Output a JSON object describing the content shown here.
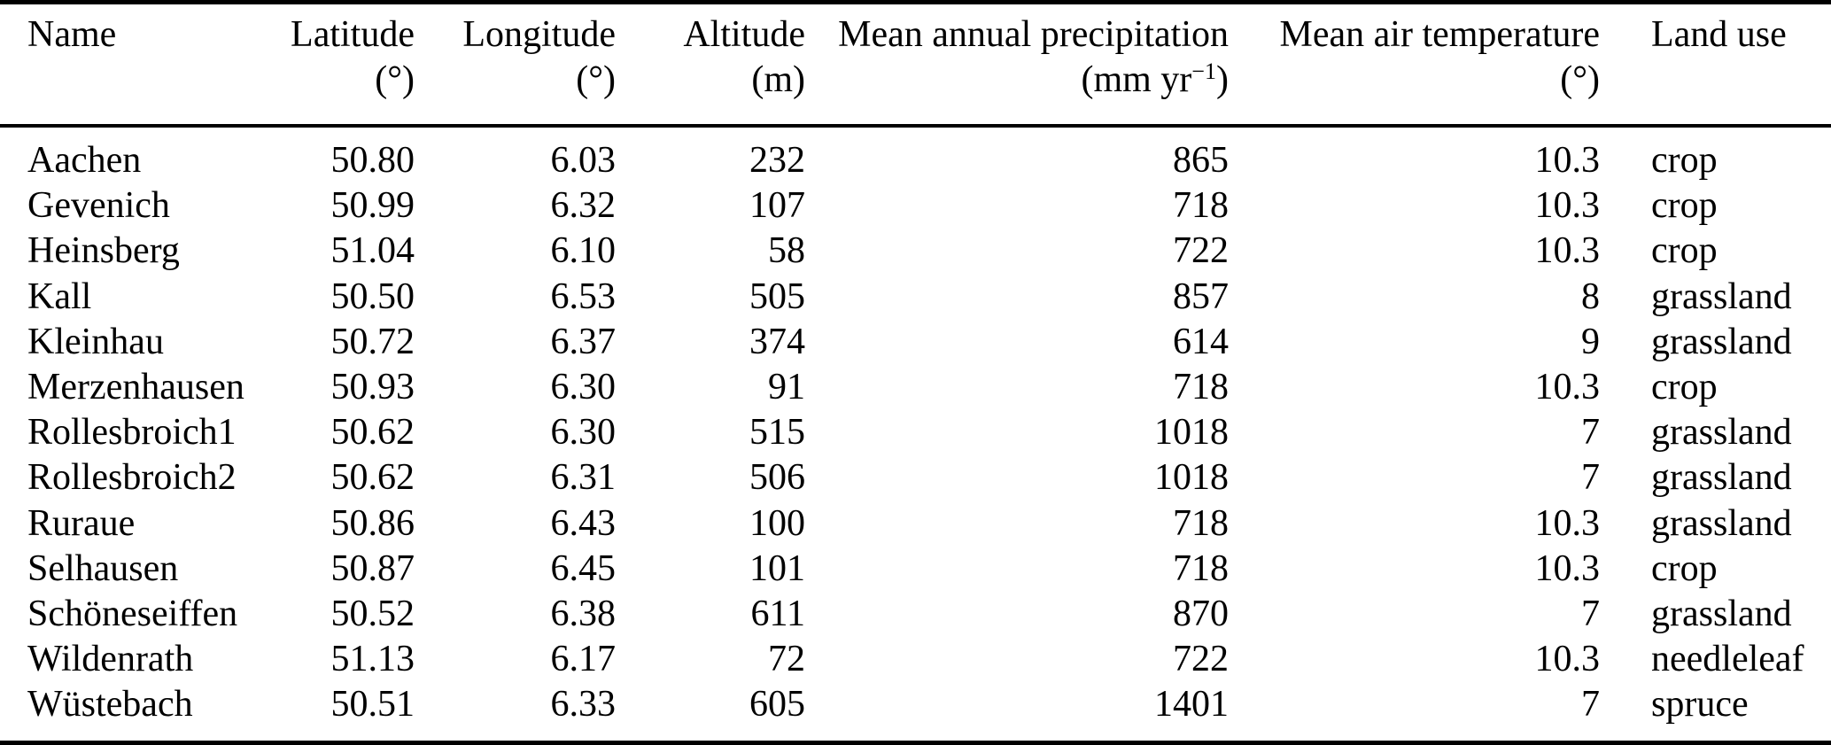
{
  "page": {
    "background_color": "#ffffff",
    "text_color": "#000000",
    "rule_color": "#000000"
  },
  "table": {
    "columns": [
      {
        "id": "name",
        "label": "Name",
        "unit": ""
      },
      {
        "id": "latitude",
        "label": "Latitude",
        "unit": "(°)"
      },
      {
        "id": "longitude",
        "label": "Longitude",
        "unit": "(°)"
      },
      {
        "id": "altitude",
        "label": "Altitude",
        "unit": "(m)"
      },
      {
        "id": "precipitation",
        "label": "Mean annual precipitation",
        "unit_pre": "(mm yr",
        "unit_sup": "−1",
        "unit_post": ")"
      },
      {
        "id": "temperature",
        "label": "Mean air temperature",
        "unit": "(°)"
      },
      {
        "id": "landuse",
        "label": "Land use",
        "unit": ""
      }
    ],
    "rows": [
      [
        "Aachen",
        "50.80",
        "6.03",
        "232",
        "865",
        "10.3",
        "crop"
      ],
      [
        "Gevenich",
        "50.99",
        "6.32",
        "107",
        "718",
        "10.3",
        "crop"
      ],
      [
        "Heinsberg",
        "51.04",
        "6.10",
        "58",
        "722",
        "10.3",
        "crop"
      ],
      [
        "Kall",
        "50.50",
        "6.53",
        "505",
        "857",
        "8",
        "grassland"
      ],
      [
        "Kleinhau",
        "50.72",
        "6.37",
        "374",
        "614",
        "9",
        "grassland"
      ],
      [
        "Merzenhausen",
        "50.93",
        "6.30",
        "91",
        "718",
        "10.3",
        "crop"
      ],
      [
        "Rollesbroich1",
        "50.62",
        "6.30",
        "515",
        "1018",
        "7",
        "grassland"
      ],
      [
        "Rollesbroich2",
        "50.62",
        "6.31",
        "506",
        "1018",
        "7",
        "grassland"
      ],
      [
        "Ruraue",
        "50.86",
        "6.43",
        "100",
        "718",
        "10.3",
        "grassland"
      ],
      [
        "Selhausen",
        "50.87",
        "6.45",
        "101",
        "718",
        "10.3",
        "crop"
      ],
      [
        "Schöneseiffen",
        "50.52",
        "6.38",
        "611",
        "870",
        "7",
        "grassland"
      ],
      [
        "Wildenrath",
        "51.13",
        "6.17",
        "72",
        "722",
        "10.3",
        "needleleaf"
      ],
      [
        "Wüstebach",
        "50.51",
        "6.33",
        "605",
        "1401",
        "7",
        "spruce"
      ]
    ]
  }
}
